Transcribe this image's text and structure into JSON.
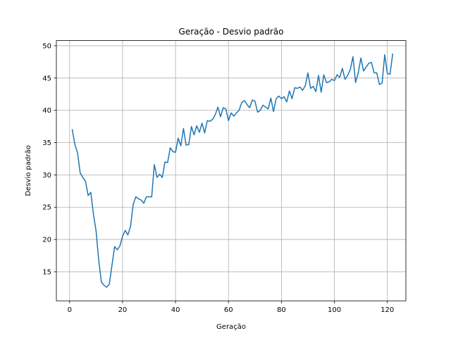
{
  "chart_data": {
    "type": "line",
    "title": "Geração - Desvio padrão",
    "xlabel": "Geração",
    "ylabel": "Desvio padrão",
    "xlim": [
      -5,
      127
    ],
    "ylim": [
      10.5,
      50.8
    ],
    "xticks": [
      0,
      20,
      40,
      60,
      80,
      100,
      120
    ],
    "yticks": [
      15,
      20,
      25,
      30,
      35,
      40,
      45,
      50
    ],
    "grid": true,
    "color": "#1f77b4",
    "series": [
      {
        "x": [
          1,
          2,
          3,
          4,
          5,
          6,
          7,
          8,
          9,
          10,
          11,
          12,
          13,
          14,
          15,
          16,
          17,
          18,
          19,
          20,
          21,
          22,
          23,
          24,
          25,
          26,
          27,
          28,
          29,
          30,
          31,
          32,
          33,
          34,
          35,
          36,
          37,
          38,
          39,
          40,
          41,
          42,
          43,
          44,
          45,
          46,
          47,
          48,
          49,
          50,
          51,
          52,
          53,
          54,
          55,
          56,
          57,
          58,
          59,
          60,
          61,
          62,
          63,
          64,
          65,
          66,
          67,
          68,
          69,
          70,
          71,
          72,
          73,
          74,
          75,
          76,
          77,
          78,
          79,
          80,
          81,
          82,
          83,
          84,
          85,
          86,
          87,
          88,
          89,
          90,
          91,
          92,
          93,
          94,
          95,
          96,
          97,
          98,
          99,
          100,
          101,
          102,
          103,
          104,
          105,
          106,
          107,
          108,
          109,
          110,
          111,
          112,
          113,
          114,
          115,
          116,
          117,
          118,
          119,
          120,
          121,
          122
        ],
        "y": [
          37.0,
          34.7,
          33.4,
          30.3,
          29.6,
          29.0,
          26.8,
          27.3,
          23.9,
          21.3,
          16.7,
          13.4,
          12.9,
          12.6,
          13.1,
          16.0,
          18.9,
          18.4,
          19.0,
          20.5,
          21.4,
          20.7,
          22.0,
          25.4,
          26.6,
          26.3,
          26.1,
          25.6,
          26.6,
          26.6,
          26.6,
          31.6,
          29.6,
          30.1,
          29.6,
          32.0,
          31.9,
          34.2,
          33.6,
          33.5,
          35.7,
          34.5,
          37.2,
          34.6,
          34.7,
          37.5,
          36.2,
          37.6,
          36.6,
          38.0,
          36.5,
          38.4,
          38.3,
          38.6,
          39.3,
          40.5,
          39.0,
          40.4,
          40.2,
          38.4,
          39.6,
          39.1,
          39.6,
          40.0,
          41.2,
          41.5,
          40.9,
          40.4,
          41.6,
          41.4,
          39.7,
          40.0,
          40.8,
          40.5,
          40.2,
          41.9,
          39.8,
          41.8,
          42.2,
          41.8,
          42.1,
          41.3,
          43.0,
          41.8,
          43.5,
          43.4,
          43.6,
          43.1,
          43.8,
          45.8,
          43.4,
          43.7,
          42.9,
          45.4,
          42.8,
          45.5,
          44.3,
          44.4,
          44.8,
          44.6,
          45.5,
          45.1,
          46.5,
          44.8,
          45.4,
          46.3,
          48.3,
          44.3,
          45.8,
          48.1,
          46.1,
          46.7,
          47.3,
          47.4,
          45.8,
          45.8,
          44.0,
          44.2,
          48.6,
          45.7,
          45.6,
          48.7
        ]
      }
    ]
  }
}
